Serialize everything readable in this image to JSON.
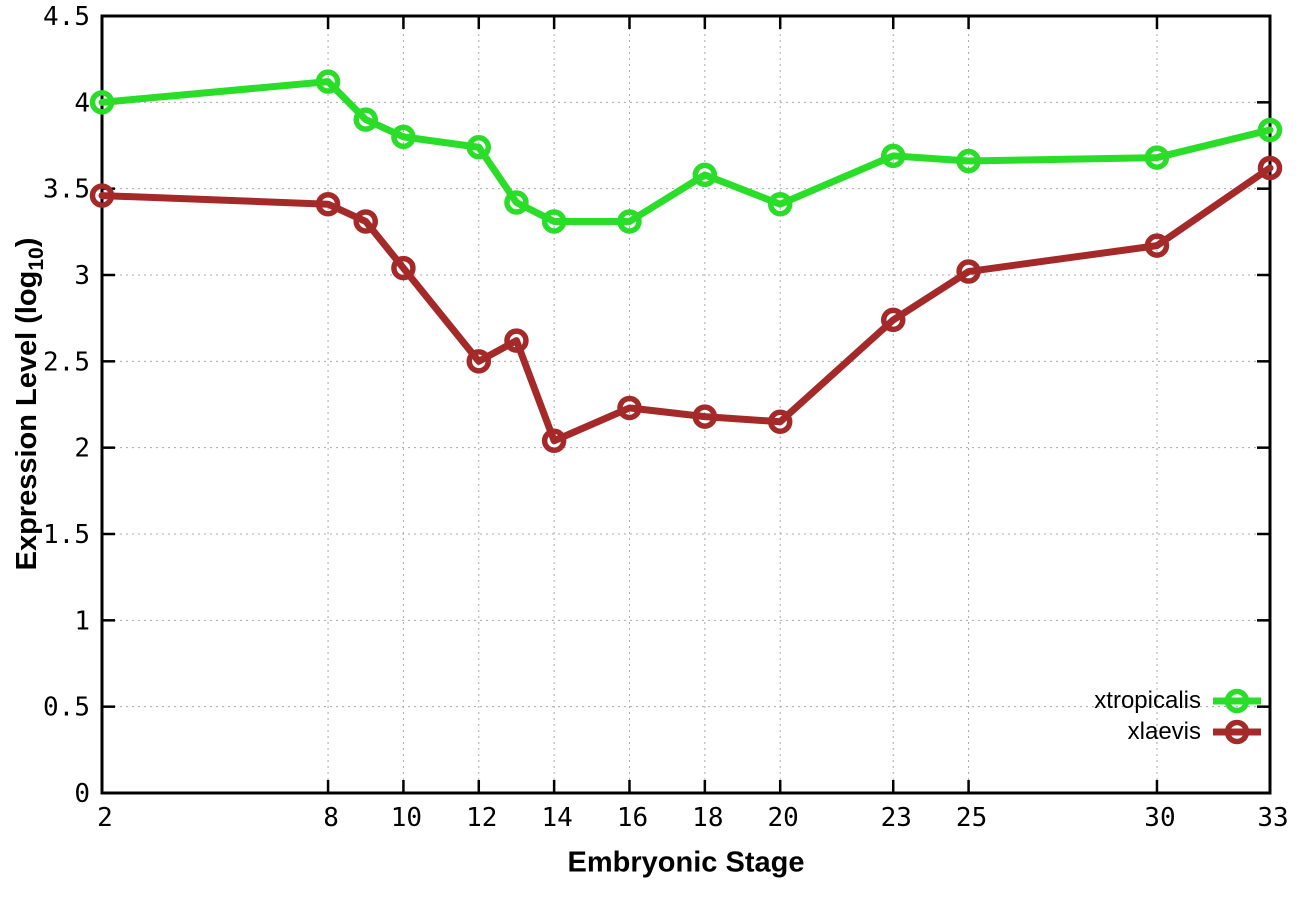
{
  "labels": {
    "y_title_main": "Expression Level (log",
    "y_title_sub": "10",
    "y_title_close": ")",
    "x_title": "Embryonic Stage"
  },
  "chart_data": {
    "type": "line",
    "title": "",
    "xlabel": "Embryonic Stage",
    "ylabel": "Expression Level (log10)",
    "xlim": [
      2,
      33
    ],
    "ylim": [
      0,
      4.5
    ],
    "grid": true,
    "grid_color": "#a8a8a8",
    "axis_color": "#000000",
    "background_color": "#ffffff",
    "legend_position": "bottom-right-inside",
    "x": [
      2,
      8,
      9,
      10,
      12,
      13,
      14,
      16,
      18,
      20,
      23,
      25,
      30,
      33
    ],
    "x_tick_values": [
      2,
      8,
      10,
      12,
      14,
      16,
      18,
      20,
      23,
      25,
      30,
      33
    ],
    "x_tick_labels": [
      "2",
      "8",
      "10",
      "12",
      "14",
      "16",
      "18",
      "20",
      "23",
      "25",
      "30",
      "33"
    ],
    "y_tick_values": [
      0,
      0.5,
      1,
      1.5,
      2,
      2.5,
      3,
      3.5,
      4,
      4.5
    ],
    "y_tick_labels": [
      "0",
      "0.5",
      "1",
      "1.5",
      "2",
      "2.5",
      "3",
      "3.5",
      "4",
      "4.5"
    ],
    "series": [
      {
        "name": "xtropicalis",
        "color": "#29dd29",
        "values": [
          4.0,
          4.12,
          3.9,
          3.8,
          3.74,
          3.42,
          3.31,
          3.31,
          3.58,
          3.41,
          3.69,
          3.66,
          3.68,
          3.84
        ]
      },
      {
        "name": "xlaevis",
        "color": "#a42a2a",
        "values": [
          3.46,
          3.41,
          3.31,
          3.04,
          2.5,
          2.62,
          2.04,
          2.23,
          2.18,
          2.15,
          2.74,
          3.02,
          3.17,
          3.62
        ]
      }
    ]
  }
}
